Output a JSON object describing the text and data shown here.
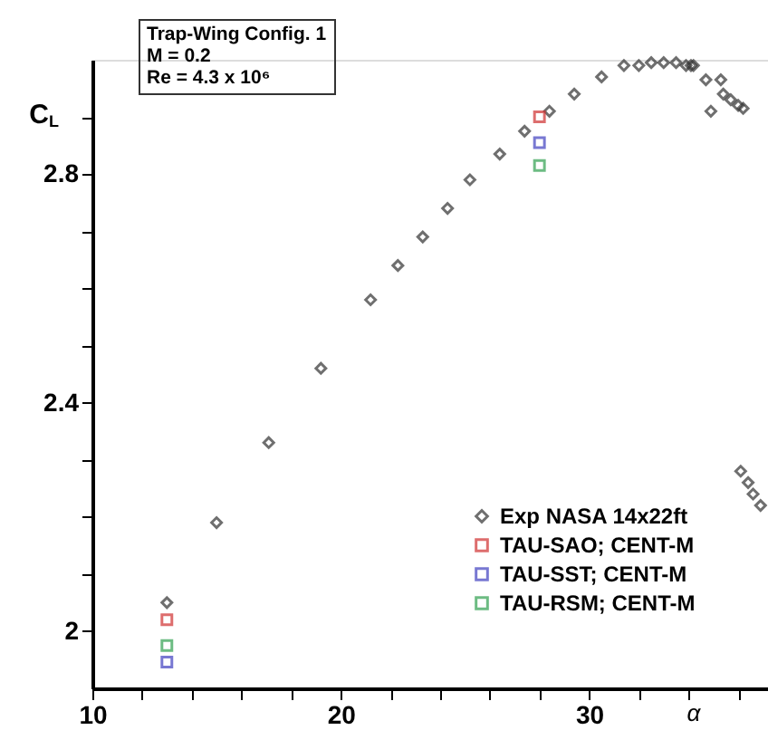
{
  "chart_data": {
    "type": "scatter",
    "xlabel": "α",
    "ylabel": "C$_{L}$",
    "annotations": [
      "Trap-Wing Config. 1",
      "M   = 0.2",
      "Re = 4.3 x 10⁶"
    ],
    "xlim": [
      10,
      37.2
    ],
    "ylim": [
      1.9,
      3.0
    ],
    "xticks": [
      10,
      {
        "value": 12,
        "label": null
      },
      {
        "value": 14,
        "label": null
      },
      {
        "value": 16,
        "label": null
      },
      {
        "value": 18,
        "label": null
      },
      20,
      {
        "value": 22,
        "label": null
      },
      {
        "value": 24,
        "label": null
      },
      {
        "value": 26,
        "label": null
      },
      {
        "value": 28,
        "label": null
      },
      30,
      {
        "value": 32,
        "label": null
      },
      {
        "value": 34,
        "label": null
      },
      {
        "value": 36,
        "label": null
      }
    ],
    "yticks": [
      2,
      {
        "value": 2.1,
        "label": null
      },
      {
        "value": 2.2,
        "label": null
      },
      {
        "value": 2.3,
        "label": null
      },
      2.4,
      {
        "value": 2.5,
        "label": null
      },
      {
        "value": 2.6,
        "label": null
      },
      {
        "value": 2.7,
        "label": null
      },
      2.8,
      {
        "value": 2.9,
        "label": null
      }
    ],
    "grid": false,
    "legend": "bottom right",
    "series": [
      {
        "name": "Exp NASA 14x22ft",
        "color": "#333333",
        "marker": "diamond",
        "x": [
          13.0,
          15.0,
          17.1,
          19.2,
          21.2,
          22.3,
          23.3,
          24.3,
          25.2,
          26.4,
          27.4,
          28.4,
          29.4,
          30.5,
          31.4,
          32.0,
          32.5,
          33.0,
          33.5,
          33.9,
          34.1,
          34.2,
          34.7,
          35.3,
          34.9,
          35.4,
          35.7,
          36.0,
          36.2,
          36.1,
          36.4,
          36.6,
          36.9
        ],
        "values": [
          2.05,
          2.19,
          2.33,
          2.46,
          2.58,
          2.64,
          2.69,
          2.74,
          2.79,
          2.835,
          2.875,
          2.91,
          2.94,
          2.97,
          2.99,
          2.99,
          2.995,
          2.995,
          2.995,
          2.99,
          2.99,
          2.99,
          2.965,
          2.965,
          2.91,
          2.94,
          2.93,
          2.92,
          2.915,
          2.28,
          2.26,
          2.24,
          2.22
        ]
      },
      {
        "name": "TAU-SAO; CENT-M",
        "color": "#d03030",
        "marker": "square",
        "x": [
          13.0,
          28.0
        ],
        "values": [
          2.02,
          2.9
        ]
      },
      {
        "name": "TAU-SST; CENT-M",
        "color": "#4040c0",
        "marker": "square",
        "x": [
          13.0,
          28.0
        ],
        "values": [
          1.946,
          2.855
        ]
      },
      {
        "name": "TAU-RSM; CENT-M",
        "color": "#30a050",
        "marker": "square",
        "x": [
          13.0,
          28.0
        ],
        "values": [
          1.975,
          2.815
        ]
      }
    ]
  }
}
